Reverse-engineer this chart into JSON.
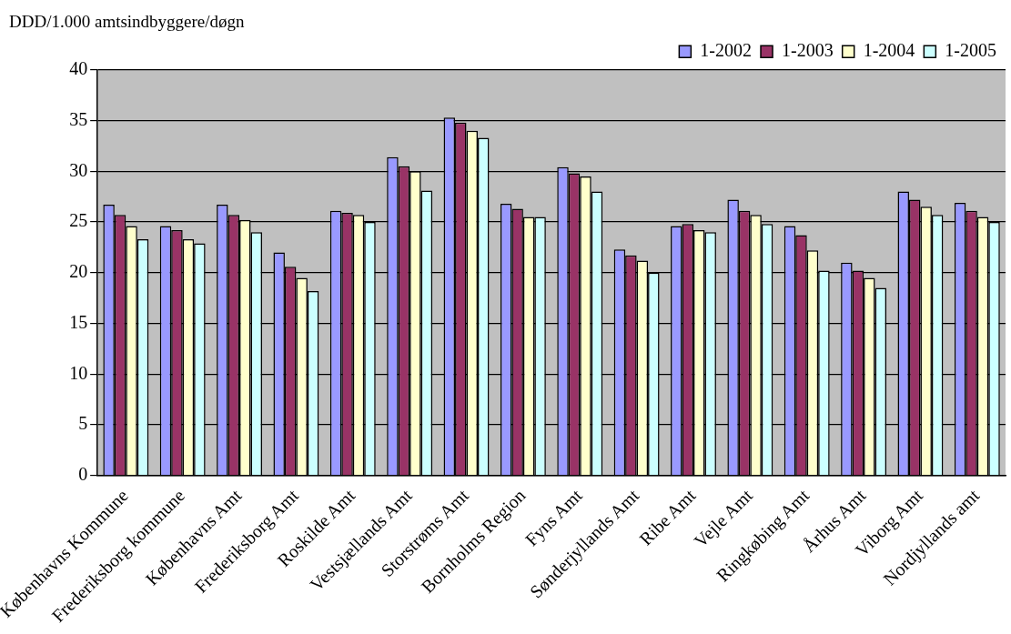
{
  "chart_data": {
    "type": "bar",
    "ylabel": "DDD/1.000 amtsindbyggere/døgn",
    "categories": [
      "Københavns Kommune",
      "Frederiksborg kommune",
      "Københavns Amt",
      "Frederiksborg Amt",
      "Roskilde Amt",
      "Vestsjællands Amt",
      "Storstrøms Amt",
      "Bornholms Region",
      "Fyns Amt",
      "Sønderjyllands Amt",
      "Ribe Amt",
      "Vejle Amt",
      "Ringkøbing Amt",
      "Århus Amt",
      "Viborg Amt",
      "Nordjyllands amt"
    ],
    "series": [
      {
        "name": "1-2002",
        "color": "#9999ff",
        "values": [
          26.7,
          24.6,
          26.7,
          22.0,
          26.1,
          31.4,
          35.3,
          26.8,
          30.4,
          22.3,
          24.6,
          27.2,
          24.6,
          21.0,
          28.0,
          26.9
        ]
      },
      {
        "name": "1-2003",
        "color": "#993366",
        "values": [
          25.7,
          24.2,
          25.7,
          20.6,
          25.9,
          30.5,
          34.8,
          26.3,
          29.8,
          21.7,
          24.8,
          26.1,
          23.7,
          20.2,
          27.2,
          26.1
        ]
      },
      {
        "name": "1-2004",
        "color": "#ffffcc",
        "values": [
          24.6,
          23.3,
          25.2,
          19.5,
          25.7,
          30.0,
          34.0,
          25.5,
          29.5,
          21.2,
          24.2,
          25.7,
          22.2,
          19.5,
          26.5,
          25.5
        ]
      },
      {
        "name": "1-2005",
        "color": "#ccffff",
        "values": [
          23.3,
          22.9,
          24.0,
          18.2,
          25.0,
          28.1,
          33.3,
          25.5,
          28.0,
          20.0,
          24.0,
          24.8,
          20.2,
          18.5,
          25.7,
          25.0
        ]
      }
    ],
    "ylim": [
      0,
      40
    ],
    "yticks": [
      0,
      5,
      10,
      15,
      20,
      25,
      30,
      35,
      40
    ],
    "grid": "y",
    "legend": "top right"
  }
}
